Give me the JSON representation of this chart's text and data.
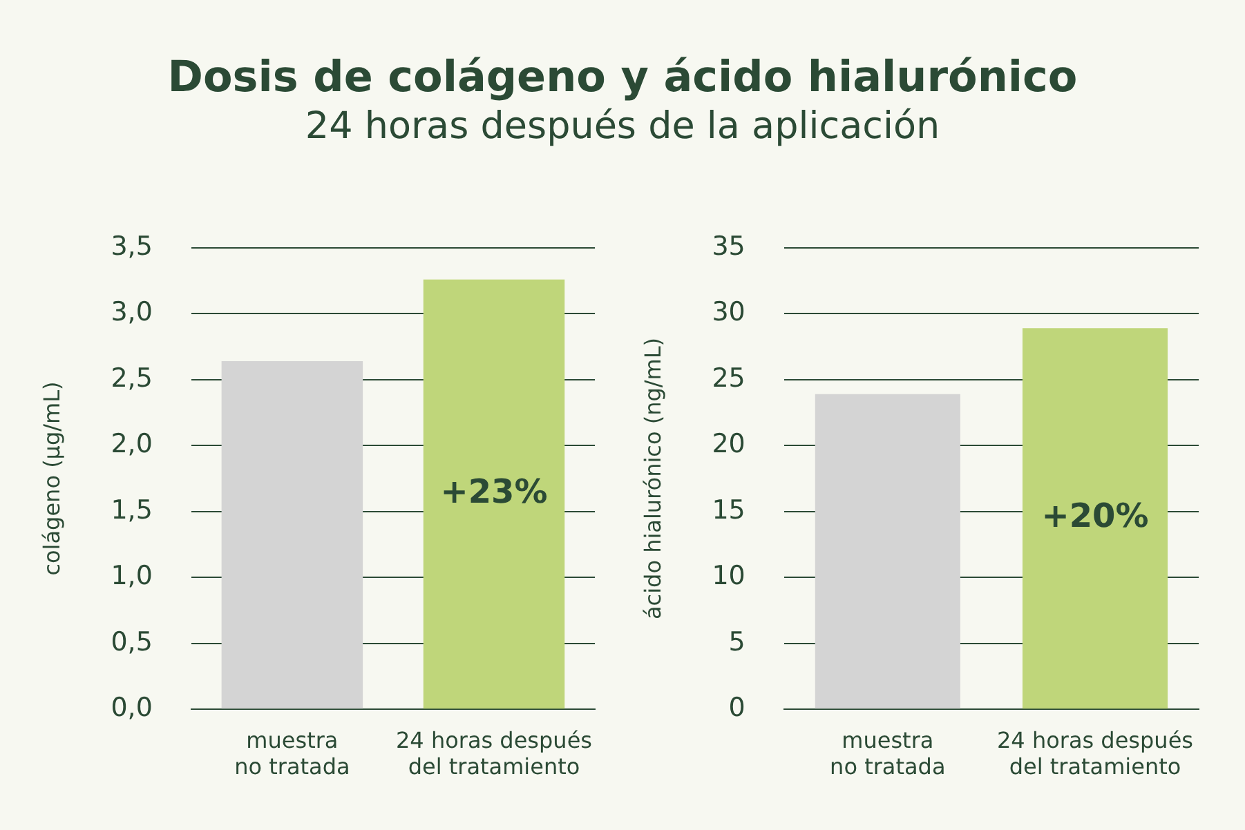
{
  "chart_data": [
    {
      "type": "bar",
      "title": "Dosis de colágeno y ácido hialurónico",
      "subtitle": "24 horas después de la aplicación",
      "ylabel": "colágeno (µg/mL)",
      "categories": [
        "muestra no tratada",
        "24 horas después del tratamiento"
      ],
      "values": [
        2.64,
        3.26
      ],
      "colors": [
        "#d4d4d4",
        "#bfd67a"
      ],
      "ylim": [
        0,
        3.5
      ],
      "yticks": [
        {
          "value": 0,
          "label": "0,0"
        },
        {
          "value": 0.5,
          "label": "0,5"
        },
        {
          "value": 1,
          "label": "1,0"
        },
        {
          "value": 1.5,
          "label": "1,5"
        },
        {
          "value": 2,
          "label": "2,0"
        },
        {
          "value": 2.5,
          "label": "2,5"
        },
        {
          "value": 3,
          "label": "3,0"
        },
        {
          "value": 3.5,
          "label": "3,5"
        }
      ],
      "grid": "y",
      "legend": false,
      "annotations": [
        "+23%"
      ]
    },
    {
      "type": "bar",
      "ylabel": "ácido hialurónico (ng/mL)",
      "categories": [
        "muestra no tratada",
        "24 horas después del tratamiento"
      ],
      "values": [
        23.9,
        28.9
      ],
      "colors": [
        "#d4d4d4",
        "#bfd67a"
      ],
      "ylim": [
        0,
        35
      ],
      "yticks": [
        0,
        5,
        10,
        15,
        20,
        25,
        30,
        35
      ],
      "grid": "y",
      "legend": false,
      "annotations": [
        "+20%"
      ]
    }
  ]
}
